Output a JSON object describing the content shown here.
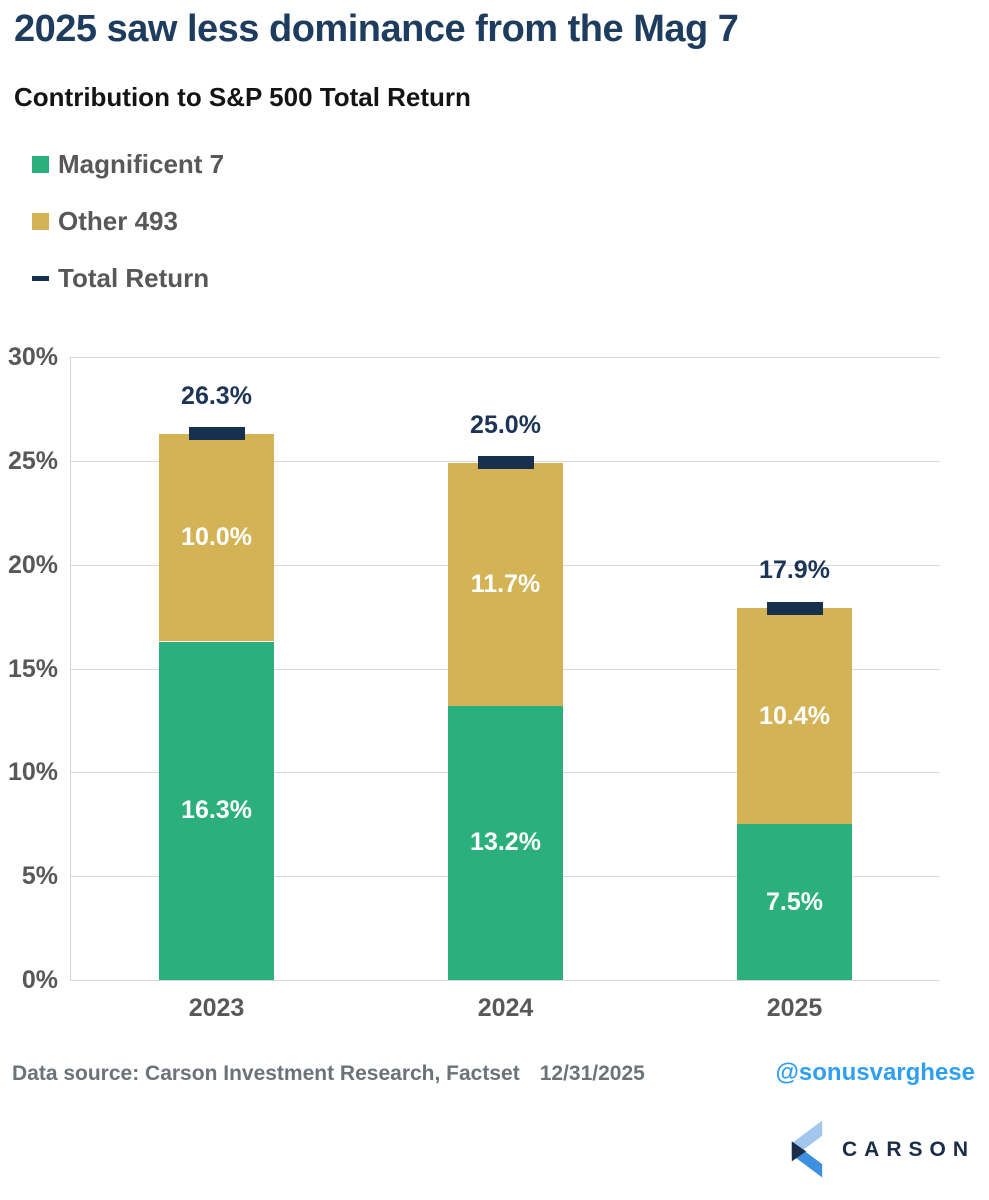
{
  "title": "2025 saw less dominance from the Mag 7",
  "subtitle": "Contribution to S&P 500 Total Return",
  "legend": [
    {
      "label": "Magnificent 7",
      "swatch": "square",
      "color": "#2bb07d"
    },
    {
      "label": "Other 493",
      "swatch": "square",
      "color": "#d3b355"
    },
    {
      "label": "Total Return",
      "swatch": "dash",
      "color": "#16304d"
    }
  ],
  "chart_data": {
    "type": "bar",
    "stacked": true,
    "title": "Contribution to S&P 500 Total Return",
    "categories": [
      "2023",
      "2024",
      "2025"
    ],
    "series": [
      {
        "name": "Magnificent 7",
        "color": "#2bb07d",
        "values": [
          16.3,
          13.2,
          7.5
        ],
        "labels": [
          "16.3%",
          "13.2%",
          "7.5%"
        ]
      },
      {
        "name": "Other 493",
        "color": "#d3b355",
        "values": [
          10.0,
          11.7,
          10.4
        ],
        "labels": [
          "10.0%",
          "11.7%",
          "10.4%"
        ]
      }
    ],
    "totals": {
      "name": "Total Return",
      "color": "#16304d",
      "values": [
        26.3,
        25.0,
        17.9
      ],
      "labels": [
        "26.3%",
        "25.0%",
        "17.9%"
      ]
    },
    "ylim": [
      0,
      30
    ],
    "ytick_step": 5,
    "ytick_labels": [
      "0%",
      "5%",
      "10%",
      "15%",
      "20%",
      "25%",
      "30%"
    ],
    "grid": true,
    "legend_position": "top-left",
    "label_color_total": "#1c3557",
    "label_color_segment": "#ffffff"
  },
  "footer": {
    "source": "Data source: Carson Investment Research, Factset",
    "as_of": "12/31/2025",
    "handle": "@sonusvarghese",
    "logo_text": "CARSON"
  },
  "colors": {
    "title": "#1d3c5e",
    "axis_text": "#58585a",
    "grid": "#d9d9d9",
    "handle_blue": "#2f9ff0",
    "logo_navy": "#1b2d49",
    "logo_light_blue": "#a3c6ee",
    "logo_mid_blue": "#3d8fe0"
  }
}
